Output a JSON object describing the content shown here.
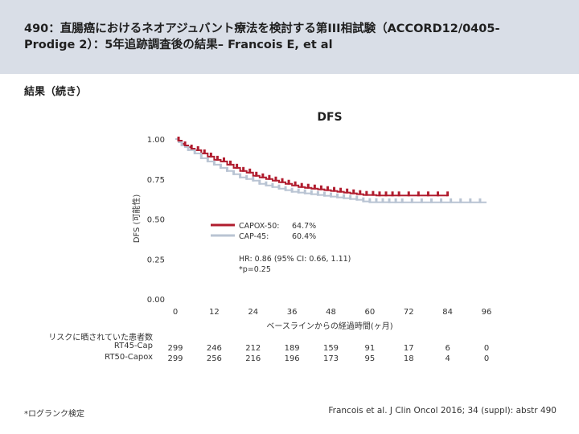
{
  "header": {
    "title_line1": "490：直腸癌におけるネオアジュバント療法を検討する第III相試験（ACCORD12/0405-",
    "title_line2": "Prodige 2）：5年追跡調査後の結果– Francois E, et al"
  },
  "subheading": "結果（続き）",
  "footnote": "*ログランク検定",
  "citation": "Francois et al. J Clin Oncol 2016; 34 (suppl): abstr 490",
  "chart_data": {
    "type": "line",
    "title": "DFS",
    "ylabel": "DFS (可能性)",
    "xlabel": "ベースラインからの経過時間(ヶ月)",
    "ylim": [
      0,
      1
    ],
    "xlim": [
      0,
      96
    ],
    "yticks": [
      "0.00",
      "0.25",
      "0.50",
      "0.75",
      "1.00"
    ],
    "ytick_values": [
      0,
      0.25,
      0.5,
      0.75,
      1.0
    ],
    "xticks": [
      0,
      12,
      24,
      36,
      48,
      60,
      72,
      84,
      96
    ],
    "legend": [
      {
        "label": "CAPOX-50:",
        "value": "64.7%",
        "color": "#b01c2e"
      },
      {
        "label": "CAP-45:",
        "value": "60.4%",
        "color": "#b9c4d3"
      }
    ],
    "annotation_line1": "HR: 0.86 (95% CI: 0.66, 1.11)",
    "annotation_line2": "*p=0.25",
    "series": [
      {
        "name": "CAPOX-50",
        "color": "#b01c2e",
        "points": [
          [
            0,
            1.0
          ],
          [
            1,
            0.99
          ],
          [
            2,
            0.97
          ],
          [
            3,
            0.96
          ],
          [
            4,
            0.95
          ],
          [
            5,
            0.94
          ],
          [
            6,
            0.93
          ],
          [
            8,
            0.91
          ],
          [
            10,
            0.89
          ],
          [
            12,
            0.87
          ],
          [
            14,
            0.86
          ],
          [
            16,
            0.84
          ],
          [
            18,
            0.82
          ],
          [
            20,
            0.8
          ],
          [
            22,
            0.79
          ],
          [
            24,
            0.77
          ],
          [
            26,
            0.76
          ],
          [
            28,
            0.75
          ],
          [
            30,
            0.74
          ],
          [
            32,
            0.73
          ],
          [
            34,
            0.72
          ],
          [
            36,
            0.71
          ],
          [
            38,
            0.7
          ],
          [
            40,
            0.695
          ],
          [
            42,
            0.69
          ],
          [
            44,
            0.685
          ],
          [
            46,
            0.68
          ],
          [
            48,
            0.675
          ],
          [
            50,
            0.67
          ],
          [
            52,
            0.665
          ],
          [
            54,
            0.66
          ],
          [
            56,
            0.655
          ],
          [
            58,
            0.65
          ],
          [
            62,
            0.647
          ],
          [
            70,
            0.647
          ],
          [
            80,
            0.647
          ],
          [
            84,
            0.647
          ]
        ]
      },
      {
        "name": "CAP-45",
        "color": "#b9c4d3",
        "points": [
          [
            0,
            1.0
          ],
          [
            1,
            0.98
          ],
          [
            2,
            0.96
          ],
          [
            3,
            0.95
          ],
          [
            4,
            0.93
          ],
          [
            6,
            0.91
          ],
          [
            8,
            0.88
          ],
          [
            10,
            0.86
          ],
          [
            12,
            0.84
          ],
          [
            14,
            0.82
          ],
          [
            16,
            0.8
          ],
          [
            18,
            0.78
          ],
          [
            20,
            0.76
          ],
          [
            22,
            0.75
          ],
          [
            24,
            0.74
          ],
          [
            26,
            0.72
          ],
          [
            28,
            0.71
          ],
          [
            30,
            0.7
          ],
          [
            32,
            0.69
          ],
          [
            34,
            0.68
          ],
          [
            36,
            0.67
          ],
          [
            38,
            0.665
          ],
          [
            40,
            0.66
          ],
          [
            42,
            0.655
          ],
          [
            44,
            0.65
          ],
          [
            46,
            0.645
          ],
          [
            48,
            0.64
          ],
          [
            50,
            0.635
          ],
          [
            52,
            0.63
          ],
          [
            54,
            0.625
          ],
          [
            56,
            0.62
          ],
          [
            58,
            0.61
          ],
          [
            60,
            0.605
          ],
          [
            66,
            0.604
          ],
          [
            75,
            0.604
          ],
          [
            85,
            0.604
          ],
          [
            96,
            0.604
          ]
        ]
      }
    ],
    "censor_marks": {
      "CAPOX-50": [
        1,
        3,
        5,
        7,
        9,
        11,
        13,
        15,
        17,
        19,
        21,
        23,
        25,
        27,
        29,
        31,
        33,
        35,
        37,
        39,
        41,
        43,
        45,
        47,
        49,
        51,
        53,
        55,
        57,
        59,
        61,
        63,
        65,
        67,
        69,
        72,
        75,
        78,
        81,
        84
      ],
      "CAP-45": [
        2,
        4,
        6,
        8,
        10,
        12,
        14,
        16,
        18,
        20,
        22,
        24,
        26,
        28,
        30,
        32,
        34,
        36,
        38,
        40,
        42,
        44,
        46,
        48,
        50,
        52,
        54,
        56,
        58,
        60,
        62,
        64,
        66,
        68,
        70,
        73,
        76,
        79,
        82,
        85,
        88,
        91,
        94
      ]
    }
  },
  "risk_table": {
    "title": "リスクに晒されていた患者数",
    "rows": [
      {
        "label": "RT45-Cap",
        "values": [
          "299",
          "246",
          "212",
          "189",
          "159",
          "91",
          "17",
          "6",
          "0"
        ]
      },
      {
        "label": "RT50-Capox",
        "values": [
          "299",
          "256",
          "216",
          "196",
          "173",
          "95",
          "18",
          "4",
          "0"
        ]
      }
    ]
  }
}
